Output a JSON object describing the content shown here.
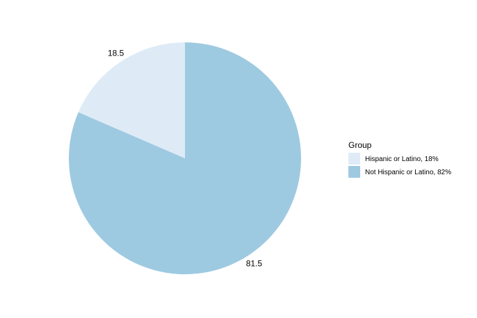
{
  "chart_data": {
    "type": "pie",
    "legend_title": "Group",
    "legend_position": "right",
    "start_angle_deg": 0,
    "direction": "counterclockwise",
    "slices": [
      {
        "label": "Hispanic or Latino, 18%",
        "value": 18.5,
        "data_label": "18.5",
        "color": "#deebf7"
      },
      {
        "label": "Not Hispanic or Latino, 82%",
        "value": 81.5,
        "data_label": "81.5",
        "color": "#9ecae1"
      }
    ]
  }
}
